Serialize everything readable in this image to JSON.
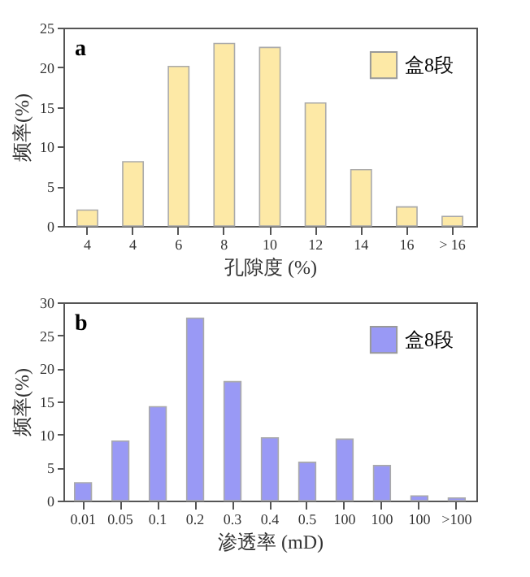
{
  "chart_data": [
    {
      "type": "bar",
      "categories": [
        "4",
        "4",
        "6",
        "8",
        "10",
        "12",
        "14",
        "16",
        "> 16"
      ],
      "series": [
        {
          "name": "盒8段",
          "color": "#fde9a6",
          "values": [
            2.0,
            8.1,
            20.1,
            23.0,
            22.5,
            15.5,
            7.1,
            2.4,
            1.2
          ]
        }
      ],
      "xlabel": "孔隙度 (%)",
      "ylabel": "频率(%)",
      "ylim": [
        0,
        25
      ],
      "yticks": [
        0,
        5,
        10,
        15,
        20,
        25
      ],
      "legend": "top right",
      "annotations": [
        "a"
      ]
    },
    {
      "type": "bar",
      "categories": [
        "0.01",
        "0.05",
        "0.1",
        "0.2",
        "0.3",
        "0.4",
        "0.5",
        "100",
        "100",
        "100",
        ">100"
      ],
      "series": [
        {
          "name": "盒8段",
          "color": "#9999f5",
          "values": [
            2.7,
            9.0,
            14.2,
            27.6,
            18.0,
            9.5,
            5.8,
            9.3,
            5.3,
            0.7,
            0.4
          ]
        }
      ],
      "xlabel": "渗透率 (mD)",
      "ylabel": "频率(%)",
      "ylim": [
        0,
        30
      ],
      "yticks": [
        0,
        5,
        10,
        15,
        20,
        25,
        30
      ],
      "legend": "top right",
      "annotations": [
        "b"
      ]
    }
  ]
}
